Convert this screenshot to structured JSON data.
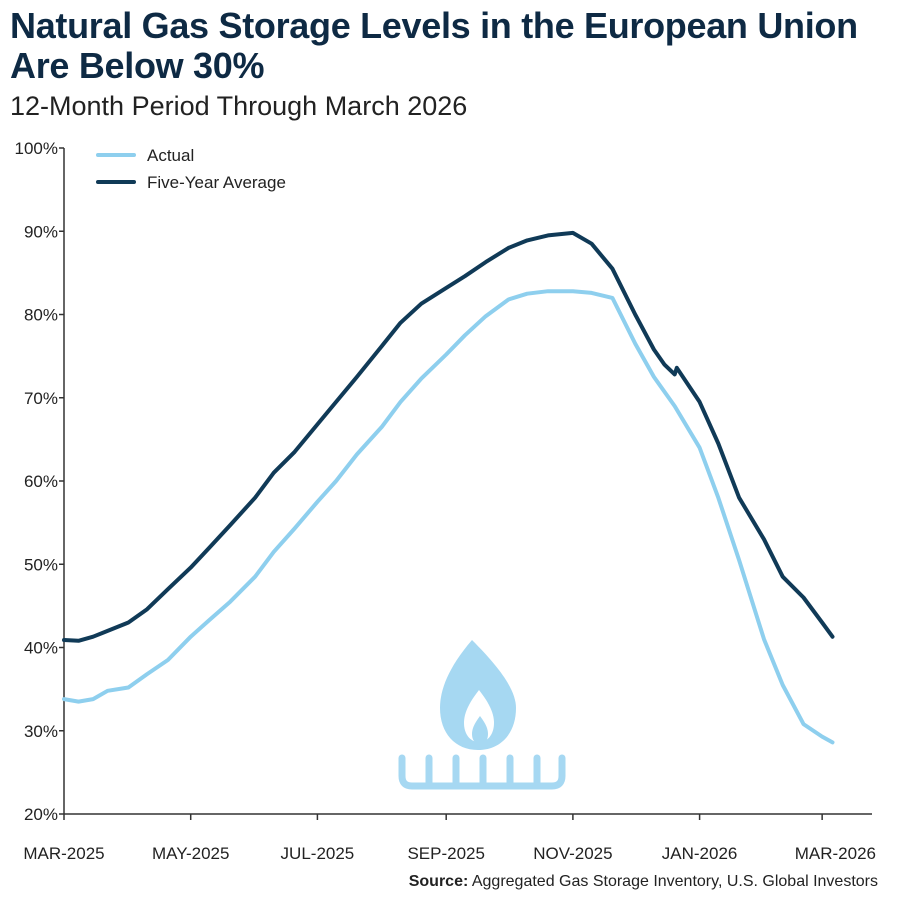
{
  "header": {
    "title": "Natural Gas Storage Levels in the European Union Are Below 30%",
    "subtitle": "12-Month Period Through March 2026"
  },
  "source": {
    "label": "Source:",
    "text": "Aggregated Gas Storage Inventory, U.S. Global Investors"
  },
  "colors": {
    "actual": "#8ecfee",
    "five_year_average": "#103a57",
    "axis": "#333333",
    "icon": "#a6d8f2"
  },
  "chart_data": {
    "type": "line",
    "title": "Natural Gas Storage Levels in the European Union Are Below 30%",
    "subtitle": "12-Month Period Through March 2026",
    "xlabel": "",
    "ylabel": "",
    "x_range": [
      "2025-03-01",
      "2026-03-25"
    ],
    "ylim": [
      20,
      100
    ],
    "yticks": [
      20,
      30,
      40,
      50,
      60,
      70,
      80,
      90,
      100
    ],
    "ytick_labels": [
      "20%",
      "30%",
      "40%",
      "50%",
      "60%",
      "70%",
      "80%",
      "90%",
      "100%"
    ],
    "xticks": [
      "2025-03-01",
      "2025-05-01",
      "2025-07-01",
      "2025-09-01",
      "2025-11-01",
      "2026-01-01",
      "2026-03-01"
    ],
    "xtick_labels": [
      "MAR-2025",
      "MAY-2025",
      "JUL-2025",
      "SEP-2025",
      "NOV-2025",
      "JAN-2026",
      "MAR-2026"
    ],
    "grid": false,
    "legend": "top-left",
    "series": [
      {
        "name": "Actual",
        "color": "#8ecfee",
        "x": [
          "2025-03-01",
          "2025-03-08",
          "2025-03-15",
          "2025-03-22",
          "2025-04-01",
          "2025-04-10",
          "2025-04-20",
          "2025-05-01",
          "2025-05-10",
          "2025-05-20",
          "2025-06-01",
          "2025-06-10",
          "2025-06-20",
          "2025-07-01",
          "2025-07-10",
          "2025-07-20",
          "2025-08-01",
          "2025-08-10",
          "2025-08-20",
          "2025-09-01",
          "2025-09-10",
          "2025-09-20",
          "2025-10-01",
          "2025-10-10",
          "2025-10-20",
          "2025-11-01",
          "2025-11-10",
          "2025-11-20",
          "2025-12-01",
          "2025-12-10",
          "2025-12-20",
          "2026-01-01",
          "2026-01-10",
          "2026-01-20",
          "2026-02-01",
          "2026-02-10",
          "2026-02-20",
          "2026-03-01",
          "2026-03-06"
        ],
        "values": [
          33.8,
          33.5,
          33.8,
          34.8,
          35.2,
          36.8,
          38.5,
          41.3,
          43.3,
          45.5,
          48.5,
          51.5,
          54.3,
          57.5,
          60.0,
          63.2,
          66.5,
          69.5,
          72.3,
          75.2,
          77.5,
          79.8,
          81.8,
          82.5,
          82.8,
          82.8,
          82.6,
          82.0,
          76.5,
          72.5,
          69.0,
          64.0,
          58.0,
          50.5,
          41.0,
          35.5,
          30.8,
          29.3,
          28.6
        ]
      },
      {
        "name": "Five-Year Average",
        "color": "#103a57",
        "x": [
          "2025-03-01",
          "2025-03-08",
          "2025-03-15",
          "2025-03-22",
          "2025-04-01",
          "2025-04-10",
          "2025-04-20",
          "2025-05-01",
          "2025-05-10",
          "2025-05-20",
          "2025-06-01",
          "2025-06-10",
          "2025-06-20",
          "2025-07-01",
          "2025-07-10",
          "2025-07-20",
          "2025-08-01",
          "2025-08-10",
          "2025-08-20",
          "2025-09-01",
          "2025-09-10",
          "2025-09-20",
          "2025-10-01",
          "2025-10-10",
          "2025-10-20",
          "2025-11-01",
          "2025-11-10",
          "2025-11-20",
          "2025-12-01",
          "2025-12-10",
          "2025-12-15",
          "2025-12-20",
          "2025-12-21",
          "2026-01-01",
          "2026-01-10",
          "2026-01-20",
          "2026-02-01",
          "2026-02-10",
          "2026-02-20",
          "2026-03-01",
          "2026-03-06"
        ],
        "values": [
          40.9,
          40.8,
          41.3,
          42.0,
          43.0,
          44.6,
          47.0,
          49.6,
          52.0,
          54.7,
          58.0,
          61.0,
          63.5,
          66.8,
          69.5,
          72.5,
          76.2,
          79.0,
          81.3,
          83.2,
          84.6,
          86.3,
          88.0,
          88.9,
          89.5,
          89.8,
          88.5,
          85.5,
          80.0,
          75.8,
          74.0,
          72.8,
          73.6,
          69.5,
          64.5,
          58.0,
          53.0,
          48.5,
          46.0,
          43.0,
          41.3
        ]
      }
    ]
  }
}
